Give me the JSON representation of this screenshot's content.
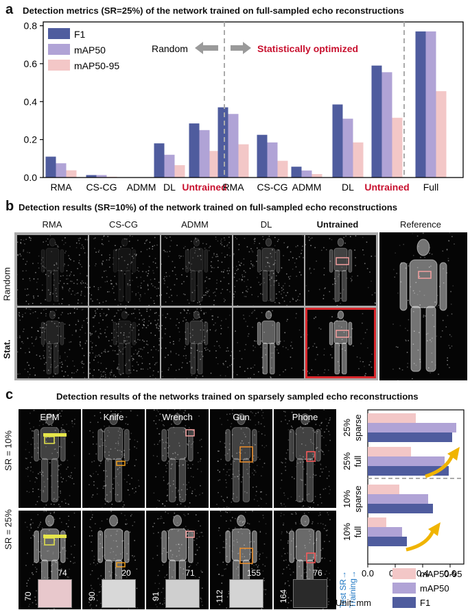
{
  "panel_a": {
    "letter": "a",
    "title": "Detection metrics (SR=25%) of the network trained on full-sampled echo reconstructions",
    "direction_left": "Random",
    "direction_right": "Statistically optimized",
    "colors": {
      "f1": "#4f5c9e",
      "map50": "#b0a3d6",
      "map5095": "#f3c7c7",
      "untrained": "#c8102e"
    }
  },
  "chart_data": [
    {
      "type": "bar",
      "title": "Detection metrics (SR=25%) of the network trained on full-sampled echo reconstructions",
      "categories": [
        "RMA",
        "CS-CG",
        "ADMM",
        "DL",
        "Untrained",
        "RMA",
        "CS-CG",
        "ADMM",
        "DL",
        "Untrained",
        "Full"
      ],
      "groups": [
        "Random",
        "Random",
        "Random",
        "Random",
        "Random",
        "Statistically optimized",
        "Statistically optimized",
        "Statistically optimized",
        "Statistically optimized",
        "Statistically optimized",
        "Full"
      ],
      "series": [
        {
          "name": "F1",
          "values": [
            0.11,
            0.013,
            0.0,
            0.18,
            0.285,
            0.37,
            0.225,
            0.057,
            0.385,
            0.59,
            0.77
          ]
        },
        {
          "name": "mAP50",
          "values": [
            0.075,
            0.013,
            0.0,
            0.12,
            0.25,
            0.335,
            0.185,
            0.037,
            0.31,
            0.555,
            0.77
          ]
        },
        {
          "name": "mAP50-95",
          "values": [
            0.038,
            0.004,
            0.0,
            0.065,
            0.14,
            0.175,
            0.088,
            0.018,
            0.185,
            0.315,
            0.455
          ]
        }
      ],
      "yticks": [
        "0.0",
        "0.2",
        "0.4",
        "0.6",
        "0.8"
      ],
      "ylim": [
        0,
        0.82
      ],
      "xlabel": "",
      "ylabel": "",
      "legend": "top-left"
    },
    {
      "type": "bar",
      "orientation": "horizontal",
      "categories": [
        "25% sparse",
        "25% full",
        "10% sparse",
        "10% full"
      ],
      "series": [
        {
          "name": "mAP50-95",
          "values": [
            0.35,
            0.315,
            0.23,
            0.135
          ]
        },
        {
          "name": "mAP50",
          "values": [
            0.645,
            0.56,
            0.44,
            0.25
          ]
        },
        {
          "name": "F1",
          "values": [
            0.615,
            0.59,
            0.475,
            0.285
          ]
        }
      ],
      "xticks": [
        "0.0",
        "0.2",
        "0.4",
        "0.6"
      ],
      "xlim": [
        0,
        0.7
      ],
      "axis_note_test": "Test SR→",
      "axis_note_training": "Training→",
      "legend": "bottom-right"
    }
  ],
  "panel_b": {
    "letter": "b",
    "title": "Detection results (SR=10%) of the network trained on full-sampled echo reconstructions",
    "columns": [
      "RMA",
      "CS-CG",
      "ADMM",
      "DL",
      "Untrained"
    ],
    "reference_label": "Reference",
    "row_random": "Random",
    "row_stat": "Stat."
  },
  "panel_c": {
    "letter": "c",
    "title": "Detection results of the networks trained on sparsely sampled echo reconstructions",
    "objects": [
      "EPM",
      "Knife",
      "Wrench",
      "Gun",
      "Phone"
    ],
    "row_10": "SR = 10%",
    "row_25": "SR = 25%",
    "dims": [
      {
        "w": "74",
        "h": "70"
      },
      {
        "w": "20",
        "h": "90"
      },
      {
        "w": "71",
        "h": "91"
      },
      {
        "w": "155",
        "h": "112"
      },
      {
        "w": "76",
        "h": "164"
      }
    ],
    "unit": "Unit: mm"
  }
}
